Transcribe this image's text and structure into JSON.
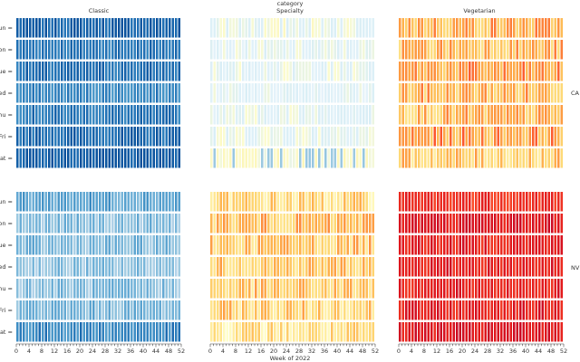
{
  "chart_data": {
    "type": "heatmap",
    "suptitle_line1": "category",
    "suptitle_line2": "Specialty",
    "xlabel": "Week of 2022",
    "weeks": [
      1,
      52
    ],
    "x_ticks": [
      0,
      4,
      8,
      12,
      16,
      20,
      24,
      28,
      32,
      36,
      40,
      44,
      48,
      52
    ],
    "x_tick_labels": [
      "0",
      "4",
      "8",
      "12",
      "16",
      "20",
      "24",
      "28",
      "32",
      "36",
      "40",
      "44",
      "48",
      "52"
    ],
    "y_tick_labels": [
      "Sun",
      "Mon",
      "Tue",
      "Wed",
      "Thu",
      "Fri",
      "Sat"
    ],
    "y_tick_labels_visible": [
      "Sun =",
      "Mon =",
      "Tue =",
      "Wed =",
      "Thu =",
      "Fri =",
      "Sat ="
    ],
    "columns": [
      {
        "key": "classic",
        "label": "Classic"
      },
      {
        "key": "specialty",
        "label": "Specialty"
      },
      {
        "key": "vegetarian",
        "label": "Vegetarian"
      }
    ],
    "rows": [
      {
        "key": "CA",
        "label": "CA"
      },
      {
        "key": "NV",
        "label": "NV"
      }
    ],
    "panels": [
      {
        "column": "Classic",
        "row": "CA",
        "palette": "blue",
        "level": 0.85,
        "spread": 0.12,
        "day_levels": [
          0.92,
          0.82,
          0.84,
          0.72,
          0.8,
          0.88,
          0.95
        ]
      },
      {
        "column": "Specialty",
        "row": "CA",
        "palette": "blue-yellow",
        "level": 0.3,
        "spread": 0.2,
        "day_levels": [
          0.32,
          0.2,
          0.24,
          0.16,
          0.24,
          0.3,
          0.5
        ]
      },
      {
        "column": "Vegetarian",
        "row": "CA",
        "palette": "warm",
        "level": 0.45,
        "spread": 0.2,
        "day_levels": [
          0.45,
          0.42,
          0.48,
          0.42,
          0.4,
          0.5,
          0.32
        ]
      },
      {
        "column": "Classic",
        "row": "NV",
        "palette": "blue",
        "level": 0.45,
        "spread": 0.15,
        "day_levels": [
          0.58,
          0.4,
          0.42,
          0.38,
          0.4,
          0.45,
          0.72
        ]
      },
      {
        "column": "Specialty",
        "row": "NV",
        "palette": "warm",
        "level": 0.3,
        "spread": 0.2,
        "day_levels": [
          0.25,
          0.38,
          0.35,
          0.35,
          0.32,
          0.3,
          0.2
        ]
      },
      {
        "column": "Vegetarian",
        "row": "NV",
        "palette": "warm",
        "level": 0.85,
        "spread": 0.08,
        "day_levels": [
          0.8,
          0.88,
          0.85,
          0.85,
          0.84,
          0.85,
          0.88
        ]
      }
    ]
  }
}
